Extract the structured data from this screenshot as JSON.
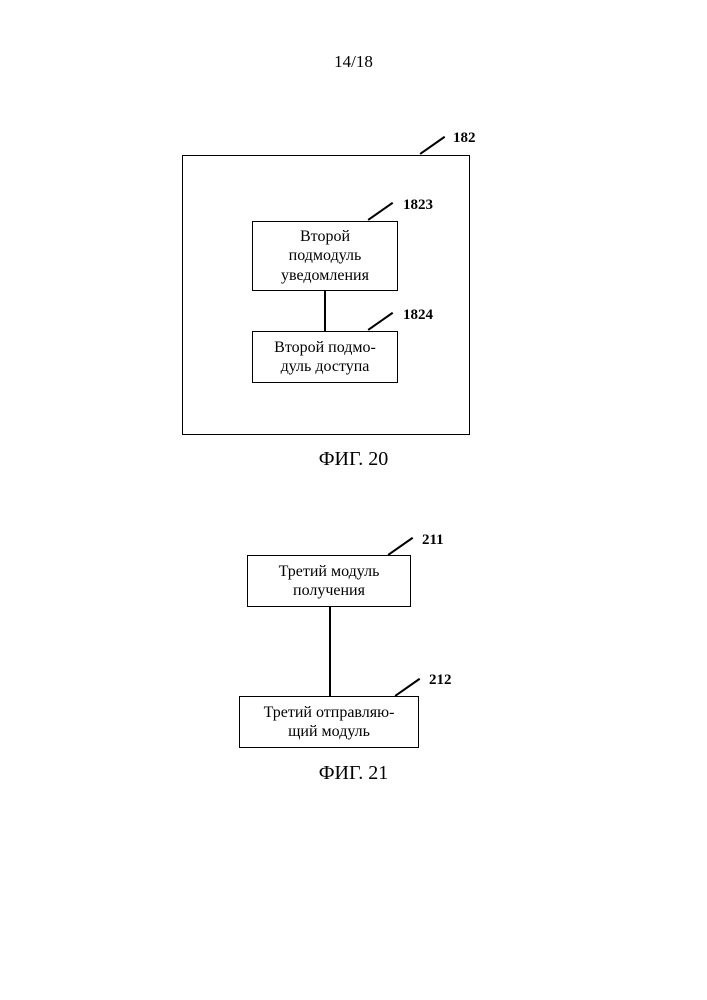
{
  "page_number": "14/18",
  "figure20": {
    "outer_ref": "182",
    "box1": {
      "ref": "1823",
      "text": "Второй\nподмодуль\nуведомления"
    },
    "box2": {
      "ref": "1824",
      "text": "Второй подмо-\nдуль доступа"
    },
    "caption": "ФИГ. 20"
  },
  "figure21": {
    "box1": {
      "ref": "211",
      "text": "Третий модуль\nполучения"
    },
    "box2": {
      "ref": "212",
      "text": "Третий отправляю-\nщий модуль"
    },
    "caption": "ФИГ. 21"
  },
  "colors": {
    "line": "#000000",
    "background": "#ffffff"
  }
}
